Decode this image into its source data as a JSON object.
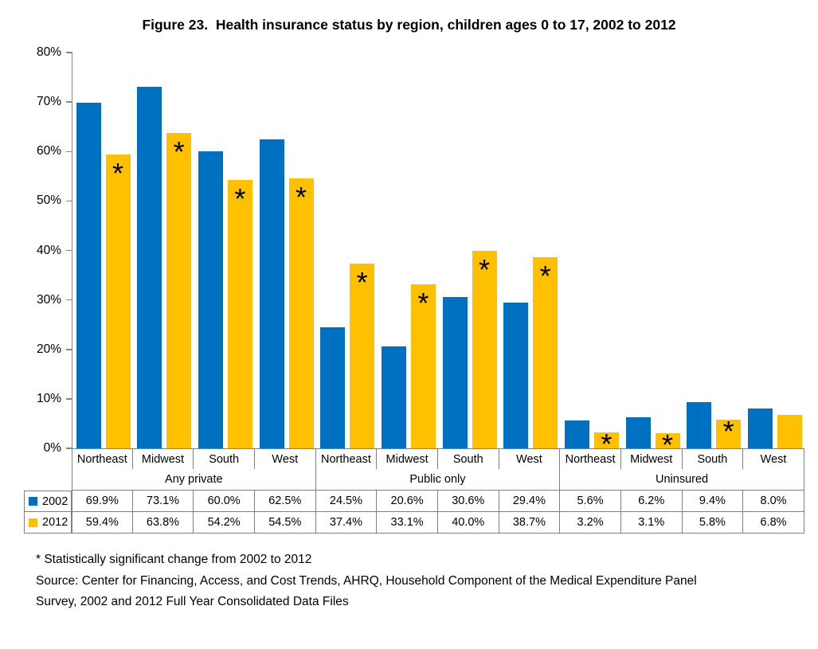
{
  "title": "Figure 23.  Health insurance status by region, children ages 0 to 17, 2002 to 2012",
  "colors": {
    "series_2002": "#0070C0",
    "series_2012": "#FFC000",
    "axis": "#868686",
    "table_border": "#808080"
  },
  "chart_data": {
    "type": "bar",
    "title": "Figure 23.  Health insurance status by region, children ages 0 to 17, 2002 to 2012",
    "groups": [
      "Any private",
      "Public only",
      "Uninsured"
    ],
    "regions_per_group": [
      "Northeast",
      "Midwest",
      "South",
      "West"
    ],
    "categories": [
      "Any private Northeast",
      "Any private Midwest",
      "Any private South",
      "Any private West",
      "Public only Northeast",
      "Public only Midwest",
      "Public only South",
      "Public only West",
      "Uninsured Northeast",
      "Uninsured Midwest",
      "Uninsured South",
      "Uninsured West"
    ],
    "series": [
      {
        "name": "2002",
        "color": "#0070C0",
        "values": [
          69.9,
          73.1,
          60.0,
          62.5,
          24.5,
          20.6,
          30.6,
          29.4,
          5.6,
          6.2,
          9.4,
          8.0
        ]
      },
      {
        "name": "2012",
        "color": "#FFC000",
        "values": [
          59.4,
          63.8,
          54.2,
          54.5,
          37.4,
          33.1,
          40.0,
          38.7,
          3.2,
          3.1,
          5.8,
          6.8
        ],
        "significant": [
          true,
          true,
          true,
          true,
          true,
          true,
          true,
          true,
          true,
          true,
          true,
          false
        ]
      }
    ],
    "significance_marker": "*",
    "ylim": [
      0,
      80
    ],
    "y_ticks": [
      "0%",
      "10%",
      "20%",
      "30%",
      "40%",
      "50%",
      "60%",
      "70%",
      "80%"
    ],
    "ylabel": "",
    "xlabel": "",
    "grid": false,
    "legend_position": "table-left"
  },
  "table": {
    "region_headers": [
      "Northeast",
      "Midwest",
      "South",
      "West",
      "Northeast",
      "Midwest",
      "South",
      "West",
      "Northeast",
      "Midwest",
      "South",
      "West"
    ],
    "group_headers": [
      "Any private",
      "Public only",
      "Uninsured"
    ],
    "rows": [
      {
        "label": "2002",
        "color": "#0070C0",
        "values": [
          "69.9%",
          "73.1%",
          "60.0%",
          "62.5%",
          "24.5%",
          "20.6%",
          "30.6%",
          "29.4%",
          "5.6%",
          "6.2%",
          "9.4%",
          "8.0%"
        ]
      },
      {
        "label": "2012",
        "color": "#FFC000",
        "values": [
          "59.4%",
          "63.8%",
          "54.2%",
          "54.5%",
          "37.4%",
          "33.1%",
          "40.0%",
          "38.7%",
          "3.2%",
          "3.1%",
          "5.8%",
          "6.8%"
        ]
      }
    ]
  },
  "footnotes": [
    "* Statistically significant change from 2002 to 2012",
    "Source: Center for Financing, Access, and Cost Trends, AHRQ, Household Component of the Medical Expenditure Panel Survey, 2002 and 2012 Full Year Consolidated Data Files"
  ]
}
